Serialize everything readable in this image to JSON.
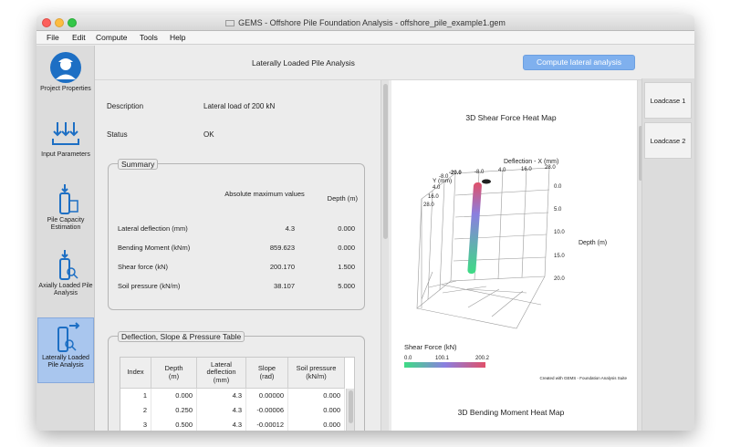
{
  "window": {
    "title": "GEMS - Offshore Pile Foundation Analysis - offshore_pile_example1.gem"
  },
  "menu": [
    "File",
    "Edit",
    "Compute",
    "Tools",
    "Help"
  ],
  "sidebar": {
    "items": [
      {
        "label": "Project Properties",
        "icon": "engineer-icon"
      },
      {
        "label": "Input Parameters",
        "icon": "input-parameters-icon"
      },
      {
        "label": "Pile Capacity Estimation",
        "icon": "pile-capacity-icon"
      },
      {
        "label": "Axially Loaded Pile Analysis",
        "icon": "axial-pile-icon"
      },
      {
        "label": "Laterally Loaded Pile Analysis",
        "icon": "lateral-pile-icon",
        "active": true
      }
    ]
  },
  "main": {
    "title": "Laterally Loaded Pile Analysis",
    "compute_button": "Compute lateral analysis",
    "description_label": "Description",
    "description_value": "Lateral load of 200 kN",
    "status_label": "Status",
    "status_value": "OK"
  },
  "summary": {
    "title": "Summary",
    "col_value": "Absolute maximum values",
    "col_depth": "Depth (m)",
    "rows": [
      {
        "label": "Lateral deflection (mm)",
        "value": "4.3",
        "depth": "0.000"
      },
      {
        "label": "Bending Moment (kNm)",
        "value": "859.623",
        "depth": "0.000"
      },
      {
        "label": "Shear force (kN)",
        "value": "200.170",
        "depth": "1.500"
      },
      {
        "label": "Soil pressure (kN/m)",
        "value": "38.107",
        "depth": "5.000"
      }
    ]
  },
  "table": {
    "title": "Deflection, Slope & Pressure Table",
    "headers": [
      "Index",
      "Depth (m)",
      "Lateral deflection (mm)",
      "Slope (rad)",
      "Soil pressure (kN/m)"
    ],
    "rows": [
      [
        "1",
        "0.000",
        "4.3",
        "0.00000",
        "0.000"
      ],
      [
        "2",
        "0.250",
        "4.3",
        "-0.00006",
        "0.000"
      ],
      [
        "3",
        "0.500",
        "4.3",
        "-0.00012",
        "0.000"
      ]
    ]
  },
  "heatmap": {
    "title": "3D Shear Force Heat Map",
    "x_axis_label": "Deflection - X (mm)",
    "x_ticks": [
      "-20.0",
      "-8.0",
      "4.0",
      "16.0",
      "28.0"
    ],
    "y_axis_label": "Y (mm)",
    "y_ticks": [
      "-8.0",
      "4.0",
      "16.0",
      "28.0"
    ],
    "z_axis_label": "Depth (m)",
    "z_ticks": [
      "0.0",
      "5.0",
      "10.0",
      "15.0",
      "20.0"
    ],
    "legend_title": "Shear Force (kN)",
    "legend_ticks": [
      "0.0",
      "100.1",
      "200.2"
    ],
    "colors": {
      "low": "#3ddc84",
      "mid": "#8a7fe0",
      "high": "#e0506a"
    },
    "credit": "Created with GEMS - Foundation Analysis Suite"
  },
  "heatmap2": {
    "title": "3D Bending Moment Heat Map"
  },
  "loadcases": [
    "Loadcase 1",
    "Loadcase 2"
  ]
}
